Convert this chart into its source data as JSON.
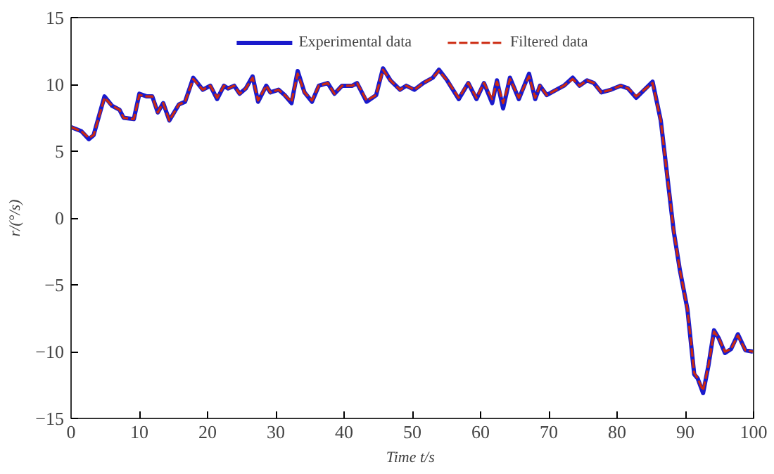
{
  "chart_data": {
    "type": "line",
    "xlabel": "Time  t/s",
    "ylabel": "r/(°/s)",
    "xlim": [
      0,
      100
    ],
    "ylim": [
      -15,
      15
    ],
    "xticks": [
      0,
      10,
      20,
      30,
      40,
      50,
      60,
      70,
      80,
      90,
      100
    ],
    "yticks": [
      -15,
      -10,
      -5,
      0,
      5,
      10,
      15
    ],
    "grid": false,
    "legend": "top",
    "marker": "none",
    "series": [
      {
        "name": "Experimental data",
        "color": "#1a1acc",
        "line_style": "solid",
        "x": [
          0,
          1.5,
          2.6,
          3.3,
          4.9,
          6.0,
          7.1,
          7.7,
          9.2,
          10.0,
          11.1,
          11.9,
          12.7,
          13.5,
          14.4,
          15.8,
          16.7,
          17.9,
          19.3,
          20.4,
          21.4,
          22.4,
          23.0,
          23.9,
          24.7,
          25.6,
          26.6,
          27.4,
          28.6,
          29.2,
          30.4,
          31.3,
          32.3,
          33.2,
          34.2,
          35.3,
          36.3,
          37.6,
          38.6,
          39.7,
          41.2,
          41.9,
          43.3,
          44.7,
          45.7,
          46.8,
          48.2,
          49.1,
          50.3,
          51.6,
          53.0,
          53.9,
          55.1,
          56.8,
          58.2,
          59.4,
          60.5,
          61.7,
          62.4,
          63.3,
          64.3,
          65.6,
          67.1,
          68.0,
          68.7,
          69.7,
          71.1,
          72.2,
          73.5,
          74.5,
          75.6,
          76.6,
          77.7,
          79.1,
          80.5,
          81.6,
          82.8,
          84.0,
          85.2,
          86.4,
          88.3,
          89.2,
          90.3,
          91.3,
          91.8,
          92.6,
          93.4,
          94.2,
          94.9,
          95.8,
          96.7,
          97.7,
          98.8,
          99.9
        ],
        "values": [
          6.8,
          6.5,
          5.9,
          6.2,
          9.1,
          8.4,
          8.1,
          7.5,
          7.4,
          9.3,
          9.1,
          9.1,
          7.9,
          8.6,
          7.3,
          8.5,
          8.7,
          10.5,
          9.6,
          9.9,
          8.9,
          9.9,
          9.7,
          9.9,
          9.3,
          9.7,
          10.6,
          8.7,
          9.9,
          9.4,
          9.6,
          9.2,
          8.6,
          11.0,
          9.4,
          8.7,
          9.9,
          10.1,
          9.3,
          9.9,
          9.9,
          10.1,
          8.7,
          9.2,
          11.2,
          10.3,
          9.6,
          9.9,
          9.6,
          10.1,
          10.5,
          11.1,
          10.3,
          8.9,
          10.1,
          8.9,
          10.1,
          8.6,
          10.3,
          8.2,
          10.5,
          8.9,
          10.8,
          8.9,
          9.9,
          9.2,
          9.6,
          9.9,
          10.5,
          9.9,
          10.3,
          10.1,
          9.4,
          9.6,
          9.9,
          9.7,
          9.0,
          9.6,
          10.2,
          7.3,
          -1.0,
          -3.9,
          -6.8,
          -11.7,
          -12.0,
          -13.1,
          -11.0,
          -8.4,
          -9.0,
          -10.1,
          -9.8,
          -8.7,
          -9.9,
          -10.0
        ]
      },
      {
        "name": "Filtered data",
        "color": "#cc2a10",
        "line_style": "dashed",
        "x": [
          0,
          1.5,
          2.6,
          3.3,
          4.9,
          6.0,
          7.1,
          7.7,
          9.2,
          10.0,
          11.1,
          11.9,
          12.7,
          13.5,
          14.4,
          15.8,
          16.7,
          17.9,
          19.3,
          20.4,
          21.4,
          22.4,
          23.0,
          23.9,
          24.7,
          25.6,
          26.6,
          27.4,
          28.6,
          29.2,
          30.4,
          31.3,
          32.3,
          33.2,
          34.2,
          35.3,
          36.3,
          37.6,
          38.6,
          39.7,
          41.2,
          41.9,
          43.3,
          44.7,
          45.7,
          46.8,
          48.2,
          49.1,
          50.3,
          51.6,
          53.0,
          53.9,
          55.1,
          56.8,
          58.2,
          59.4,
          60.5,
          61.7,
          62.4,
          63.3,
          64.3,
          65.6,
          67.1,
          68.0,
          68.7,
          69.7,
          71.1,
          72.2,
          73.5,
          74.5,
          75.6,
          76.6,
          77.7,
          79.1,
          80.5,
          81.6,
          82.8,
          84.0,
          85.2,
          86.4,
          88.3,
          89.2,
          90.3,
          91.3,
          91.8,
          92.6,
          93.4,
          94.2,
          94.9,
          95.8,
          96.7,
          97.7,
          98.8,
          99.9
        ],
        "values": [
          6.8,
          6.5,
          6.0,
          6.2,
          9.0,
          8.4,
          8.1,
          7.5,
          7.4,
          9.2,
          9.1,
          9.1,
          7.9,
          8.6,
          7.3,
          8.5,
          8.7,
          10.4,
          9.6,
          9.9,
          9.0,
          9.9,
          9.7,
          9.9,
          9.3,
          9.7,
          10.5,
          8.8,
          9.9,
          9.4,
          9.6,
          9.2,
          8.7,
          10.8,
          9.4,
          8.8,
          9.9,
          10.1,
          9.3,
          9.9,
          9.9,
          10.1,
          8.8,
          9.2,
          11.1,
          10.3,
          9.6,
          9.9,
          9.6,
          10.1,
          10.5,
          11.0,
          10.3,
          9.0,
          10.1,
          9.0,
          10.1,
          8.9,
          10.2,
          8.6,
          10.4,
          9.0,
          10.6,
          9.0,
          9.9,
          9.2,
          9.6,
          9.9,
          10.4,
          9.9,
          10.3,
          10.1,
          9.4,
          9.6,
          9.9,
          9.7,
          9.1,
          9.6,
          10.1,
          7.3,
          -1.0,
          -3.9,
          -6.8,
          -11.6,
          -12.0,
          -12.9,
          -11.0,
          -8.5,
          -9.0,
          -10.0,
          -9.8,
          -8.8,
          -9.9,
          -10.0
        ]
      }
    ]
  }
}
